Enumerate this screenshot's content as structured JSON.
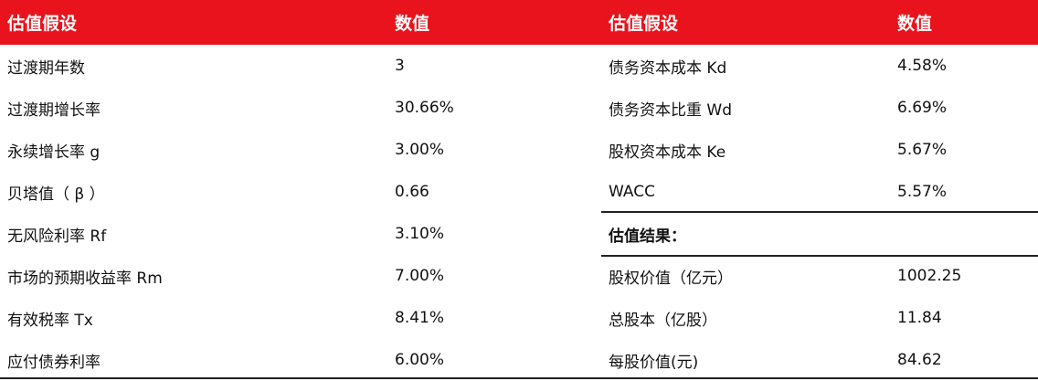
{
  "header": {
    "left_label": "估值假设",
    "left_value": "数值",
    "right_label": "估值假设",
    "right_value": "数值"
  },
  "rows": [
    {
      "left_label": "过渡期年数",
      "left_value": "3",
      "right_label": "债务资本成本 Kd",
      "right_value": "4.58%"
    },
    {
      "left_label": "过渡期增长率",
      "left_value": "30.66%",
      "right_label": "债务资本比重 Wd",
      "right_value": "6.69%"
    },
    {
      "left_label": "永续增长率 g",
      "left_value": "3.00%",
      "right_label": "股权资本成本 Ke",
      "right_value": "5.67%"
    },
    {
      "left_label": "贝塔值（ β ）",
      "left_value": "0.66",
      "right_label": "WACC",
      "right_value": "5.57%"
    },
    {
      "left_label": "无风险利率 Rf",
      "left_value": "3.10%",
      "right_label": "估值结果：",
      "right_value": ""
    },
    {
      "left_label": "市场的预期收益率 Rm",
      "left_value": "7.00%",
      "right_label": "股权价值（亿元）",
      "right_value": "1002.25"
    },
    {
      "left_label": "有效税率 Tx",
      "left_value": "8.41%",
      "right_label": "总股本（亿股）",
      "right_value": "11.84"
    },
    {
      "left_label": "应付债券利率",
      "left_value": "6.00%",
      "right_label": "每股价值(元)",
      "right_value": "84.62"
    }
  ]
}
